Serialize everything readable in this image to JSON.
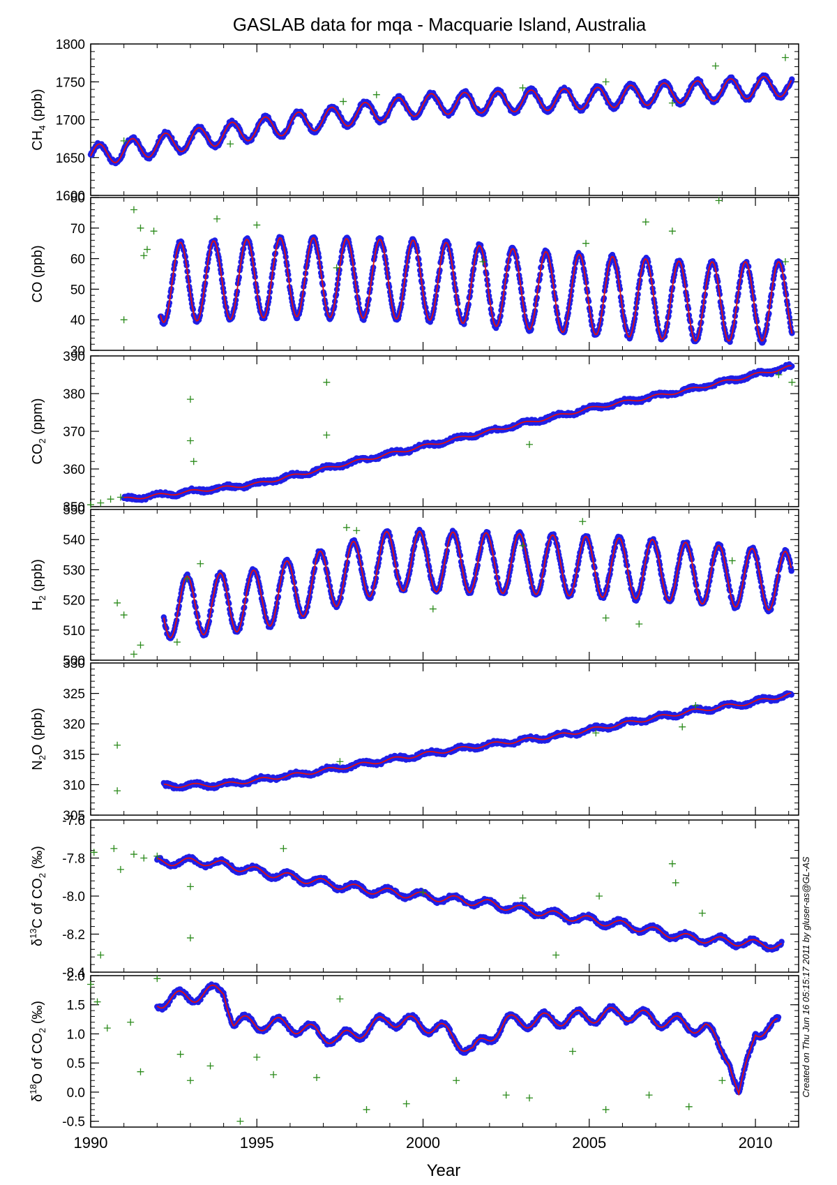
{
  "figure": {
    "title": "GASLAB data for mqa - Macquarie Island, Australia",
    "xlabel": "Year",
    "credit": "Created on Thu Jun 16 05:15:17 2011 by gluser-as@GL-AS",
    "colors": {
      "points": "#1f1fe6",
      "fit": "#e01010",
      "outliers": "#2a8a1a"
    }
  },
  "chart_data": [
    {
      "type": "scatter",
      "id": "ch4",
      "ylabel_main": "CH",
      "ylabel_sub": "4",
      "ylabel_unit": " (ppb)",
      "xlim": [
        1990,
        2011.3
      ],
      "ylim": [
        1600,
        1800
      ],
      "yticks": [
        1600,
        1650,
        1700,
        1750,
        1800
      ],
      "yticklabels": [
        "1600",
        "1650",
        "1700",
        "1750",
        "1800"
      ],
      "series": [
        {
          "name": "",
          "role": "trend",
          "x": [
            1990.0,
            1995.0,
            2000.0,
            2005.0,
            2011.0
          ],
          "y": [
            1652,
            1688,
            1720,
            1728,
            1745
          ]
        },
        {
          "name": "",
          "role": "seasonal",
          "amplitude": 14,
          "phase": 0.0,
          "start": 1990.0,
          "end": 2011.1
        }
      ],
      "outliers": {
        "x": [
          1991.0,
          1994.2,
          1997.6,
          1998.6,
          2003.0,
          2005.5,
          2007.5,
          2008.8,
          2010.9
        ],
        "y": [
          1672,
          1668,
          1724,
          1733,
          1742,
          1750,
          1722,
          1771,
          1782
        ]
      }
    },
    {
      "type": "scatter",
      "id": "co",
      "ylabel_main": "CO (ppb)",
      "ylabel_sub": "",
      "ylabel_unit": "",
      "xlim": [
        1990,
        2011.3
      ],
      "ylim": [
        30,
        80
      ],
      "yticks": [
        30,
        40,
        50,
        60,
        70,
        80
      ],
      "yticklabels": [
        "30",
        "40",
        "50",
        "60",
        "70",
        "80"
      ],
      "series": [
        {
          "name": "",
          "role": "trend",
          "x": [
            1992.0,
            1996.0,
            2000.0,
            2004.0,
            2008.0,
            2011.0
          ],
          "y": [
            52,
            54,
            53,
            49,
            46,
            46
          ]
        },
        {
          "name": "",
          "role": "seasonal",
          "amplitude": 13,
          "phase": 0.55,
          "start": 1992.1,
          "end": 2011.1
        }
      ],
      "outliers": {
        "x": [
          1991.0,
          1991.3,
          1991.5,
          1991.6,
          1991.7,
          1991.9,
          1993.8,
          1995.0,
          1997.4,
          2001.8,
          2004.9,
          2006.7,
          2007.5,
          2008.9,
          2010.9
        ],
        "y": [
          40,
          76,
          70,
          61,
          63,
          69,
          73,
          71,
          57,
          59,
          65,
          72,
          69,
          79,
          59
        ]
      }
    },
    {
      "type": "scatter",
      "id": "co2",
      "ylabel_main": "CO",
      "ylabel_sub": "2",
      "ylabel_unit": " (ppm)",
      "xlim": [
        1990,
        2011.3
      ],
      "ylim": [
        350,
        390
      ],
      "yticks": [
        350,
        360,
        370,
        380,
        390
      ],
      "yticklabels": [
        "350",
        "360",
        "370",
        "380",
        "390"
      ],
      "series": [
        {
          "name": "",
          "role": "trend",
          "x": [
            1991.0,
            1993.0,
            1995.0,
            1997.0,
            2000.0,
            2003.0,
            2005.0,
            2008.0,
            2010.0,
            2011.0
          ],
          "y": [
            352,
            354,
            356,
            360,
            366,
            372,
            376,
            381,
            385,
            387
          ]
        },
        {
          "name": "",
          "role": "seasonal",
          "amplitude": 0.4,
          "phase": 0.2,
          "start": 1991.0,
          "end": 2011.1
        }
      ],
      "outliers": {
        "x": [
          1990.0,
          1990.3,
          1990.6,
          1990.9,
          1993.0,
          1993.0,
          1993.1,
          1997.1,
          1997.1,
          2003.2,
          2010.7,
          2011.1
        ],
        "y": [
          350.5,
          351,
          352,
          352.5,
          378.5,
          367.5,
          362,
          383,
          369,
          366.5,
          385,
          383
        ]
      }
    },
    {
      "type": "scatter",
      "id": "h2",
      "ylabel_main": "H",
      "ylabel_sub": "2",
      "ylabel_unit": " (ppb)",
      "xlim": [
        1990,
        2011.3
      ],
      "ylim": [
        500,
        550
      ],
      "yticks": [
        500,
        510,
        520,
        530,
        540,
        550
      ],
      "yticklabels": [
        "500",
        "510",
        "520",
        "530",
        "540",
        "550"
      ],
      "series": [
        {
          "name": "",
          "role": "trend",
          "x": [
            1992.0,
            1995.0,
            1999.0,
            2003.0,
            2007.0,
            2011.0
          ],
          "y": [
            517,
            520,
            533,
            532,
            530,
            526
          ]
        },
        {
          "name": "",
          "role": "seasonal",
          "amplitude": 10,
          "phase": 0.35,
          "start": 1992.2,
          "end": 2011.1
        }
      ],
      "outliers": {
        "x": [
          1990.8,
          1991.0,
          1991.3,
          1991.5,
          1992.6,
          1992.9,
          1993.3,
          1997.7,
          1998.0,
          2000.3,
          2003.0,
          2004.8,
          2005.5,
          2006.5,
          2009.3
        ],
        "y": [
          519,
          515,
          502,
          505,
          506,
          527,
          532,
          544,
          543,
          517,
          538,
          546,
          514,
          512,
          533
        ]
      }
    },
    {
      "type": "scatter",
      "id": "n2o",
      "ylabel_main": "N",
      "ylabel_sub": "2",
      "ylabel_unit": "O (ppb)",
      "xlim": [
        1990,
        2011.3
      ],
      "ylim": [
        305,
        330
      ],
      "yticks": [
        305,
        310,
        315,
        320,
        325,
        330
      ],
      "yticklabels": [
        "305",
        "310",
        "315",
        "320",
        "325",
        "330"
      ],
      "series": [
        {
          "name": "",
          "role": "trend",
          "x": [
            1992.2,
            1994.0,
            1996.0,
            1998.0,
            2000.0,
            2002.0,
            2004.0,
            2006.0,
            2008.0,
            2010.0,
            2011.0
          ],
          "y": [
            309.8,
            310.0,
            311.5,
            313.2,
            315.0,
            316.6,
            318.0,
            320.0,
            322.0,
            323.6,
            324.8
          ]
        },
        {
          "name": "",
          "role": "seasonal",
          "amplitude": 0.3,
          "phase": 0.1,
          "start": 1992.2,
          "end": 2011.1
        }
      ],
      "outliers": {
        "x": [
          1990.8,
          1990.8,
          1997.5,
          2005.2,
          2007.8,
          2008.2
        ],
        "y": [
          316.5,
          309,
          313.8,
          318.5,
          319.5,
          323
        ]
      }
    },
    {
      "type": "scatter",
      "id": "d13c",
      "ylabel_main": "δ",
      "ylabel_sup": "13",
      "ylabel_unit": "C of CO",
      "ylabel_sub": "2",
      "ylabel_tail": " (‰)",
      "xlim": [
        1990,
        2011.3
      ],
      "ylim": [
        -8.4,
        -7.6
      ],
      "yticks": [
        -8.4,
        -8.2,
        -8.0,
        -7.8,
        -7.6
      ],
      "yticklabels": [
        "-8.4",
        "-8.2",
        "-8.0",
        "-7.8",
        "-7.6"
      ],
      "series": [
        {
          "name": "",
          "role": "trend",
          "x": [
            1992.0,
            1993.5,
            1996.0,
            1998.0,
            2000.0,
            2002.0,
            2004.0,
            2006.0,
            2008.0,
            2010.0,
            2010.8
          ],
          "y": [
            -7.82,
            -7.82,
            -7.9,
            -7.96,
            -8.0,
            -8.04,
            -8.1,
            -8.15,
            -8.22,
            -8.25,
            -8.26
          ]
        },
        {
          "name": "",
          "role": "seasonal",
          "amplitude": 0.02,
          "phase": 0.3,
          "start": 1992.0,
          "end": 2010.8
        }
      ],
      "outliers": {
        "x": [
          1990.1,
          1990.3,
          1990.7,
          1990.9,
          1991.3,
          1991.6,
          1992.0,
          1993.0,
          1993.0,
          1995.8,
          2000.0,
          2003.0,
          2004.0,
          2005.3,
          2007.5,
          2007.6,
          2008.4
        ],
        "y": [
          -7.77,
          -8.31,
          -7.75,
          -7.86,
          -7.78,
          -7.8,
          -7.79,
          -7.95,
          -8.22,
          -7.75,
          -7.98,
          -8.01,
          -8.31,
          -8.0,
          -7.83,
          -7.93,
          -8.09
        ]
      }
    },
    {
      "type": "scatter",
      "id": "d18o",
      "ylabel_main": "δ",
      "ylabel_sup": "18",
      "ylabel_unit": "O of CO",
      "ylabel_sub": "2",
      "ylabel_tail": " (‰)",
      "xlim": [
        1990,
        2011.3
      ],
      "ylim": [
        -0.6,
        2.0
      ],
      "yticks": [
        -0.5,
        0.0,
        0.5,
        1.0,
        1.5,
        2.0
      ],
      "yticklabels": [
        "-0.5",
        "0.0",
        "0.5",
        "1.0",
        "1.5",
        "2.0"
      ],
      "series": [
        {
          "name": "",
          "role": "trend",
          "x": [
            1992.0,
            1994.0,
            1994.3,
            1996.0,
            1997.5,
            1999.0,
            2000.5,
            2001.5,
            2002.5,
            2004.0,
            2006.0,
            2008.5,
            2009.2,
            2009.5,
            2010.0,
            2010.7
          ],
          "y": [
            1.55,
            1.75,
            1.2,
            1.15,
            0.9,
            1.25,
            1.1,
            0.7,
            1.2,
            1.25,
            1.35,
            1.1,
            0.6,
            -0.1,
            1.05,
            1.15
          ]
        },
        {
          "name": "",
          "role": "seasonal",
          "amplitude": 0.12,
          "phase": 0.6,
          "start": 1992.0,
          "end": 2010.7
        }
      ],
      "outliers": {
        "x": [
          1990.0,
          1990.2,
          1990.5,
          1991.2,
          1991.5,
          1992.0,
          1992.7,
          1993.0,
          1993.6,
          1994.5,
          1995.0,
          1995.5,
          1996.8,
          1997.5,
          1998.3,
          1999.5,
          2001.0,
          2002.5,
          2003.2,
          2004.5,
          2005.5,
          2006.8,
          2008.0,
          2009.0
        ],
        "y": [
          1.85,
          1.55,
          1.1,
          1.2,
          0.35,
          1.95,
          0.65,
          0.2,
          0.45,
          -0.5,
          0.6,
          0.3,
          0.25,
          1.6,
          -0.3,
          -0.2,
          0.2,
          -0.05,
          -0.1,
          0.7,
          -0.3,
          -0.05,
          -0.25,
          0.2
        ]
      }
    }
  ],
  "x_axis": {
    "ticks": [
      1990,
      1995,
      2000,
      2005,
      2010
    ],
    "ticklabels": [
      "1990",
      "1995",
      "2000",
      "2005",
      "2010"
    ]
  }
}
